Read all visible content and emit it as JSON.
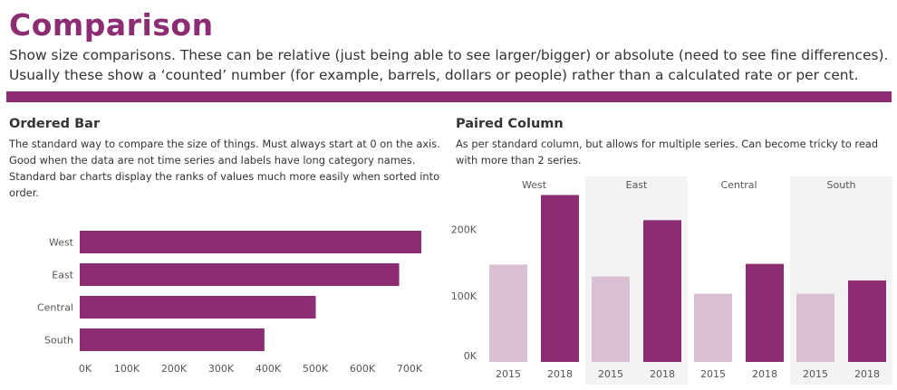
{
  "header": {
    "title": "Comparison",
    "subtitle": "Show size comparisons. These can be relative (just being able to see larger/bigger) or absolute (need to see fine differences). Usually these show a ‘counted’ number (for example, barrels, dollars or people) rather than a calculated rate or per cent."
  },
  "colors": {
    "accent": "#8c2d74",
    "light_bar": "#d8bfd2",
    "panel_shade": "#f3f3f3"
  },
  "ordered_bar": {
    "title": "Ordered Bar",
    "description": "The standard way to compare the size of things. Must always start at 0 on the axis. Good when the data are not time series and labels have long category names. Standard bar charts display the ranks of values much more easily when sorted into order."
  },
  "paired_column": {
    "title": "Paired Column",
    "description": "As per standard column, but allows for multiple series. Can become tricky to read with more than 2 series."
  },
  "chart_data": [
    {
      "type": "bar",
      "orientation": "horizontal",
      "categories": [
        "West",
        "East",
        "Central",
        "South"
      ],
      "values": [
        725000,
        678000,
        501000,
        392000
      ],
      "xlim": [
        0,
        750000
      ],
      "xticks": [
        0,
        100000,
        200000,
        300000,
        400000,
        500000,
        600000,
        700000
      ],
      "xtick_labels": [
        "0K",
        "100K",
        "200K",
        "300K",
        "400K",
        "500K",
        "600K",
        "700K"
      ]
    },
    {
      "type": "bar",
      "orientation": "vertical",
      "groups": [
        "West",
        "East",
        "Central",
        "South"
      ],
      "categories": [
        "2015",
        "2018"
      ],
      "series": [
        {
          "group": "West",
          "values": [
            147000,
            252000
          ]
        },
        {
          "group": "East",
          "values": [
            129000,
            214000
          ]
        },
        {
          "group": "Central",
          "values": [
            103000,
            148000
          ]
        },
        {
          "group": "South",
          "values": [
            103000,
            123000
          ]
        }
      ],
      "ylim": [
        0,
        280000
      ],
      "yticks": [
        0,
        100000,
        200000
      ],
      "ytick_labels": [
        "0K",
        "100K",
        "200K"
      ]
    }
  ]
}
